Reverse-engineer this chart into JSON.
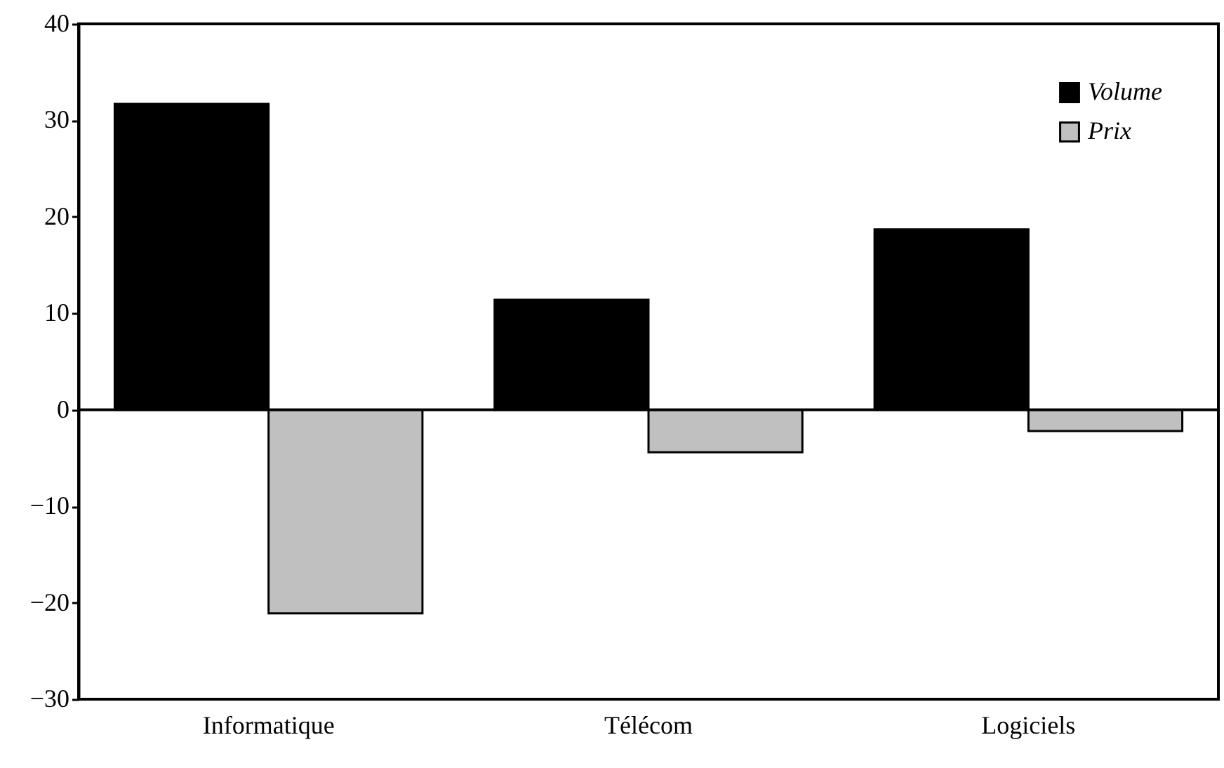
{
  "chart_data": {
    "type": "bar",
    "categories": [
      "Informatique",
      "Télécom",
      "Logiciels"
    ],
    "series": [
      {
        "name": "Volume",
        "color": "#000000",
        "values": [
          31.7,
          11.4,
          18.7
        ]
      },
      {
        "name": "Prix",
        "color": "#c0c0c0",
        "values": [
          -21.1,
          -4.4,
          -2.2
        ]
      }
    ],
    "ylim": [
      -30,
      40
    ],
    "yticks": [
      -30,
      -20,
      -10,
      0,
      10,
      20,
      30,
      40
    ],
    "ref_lines": [
      {
        "axis": "y",
        "value": 0
      }
    ],
    "grid": false,
    "legend": "top right"
  }
}
